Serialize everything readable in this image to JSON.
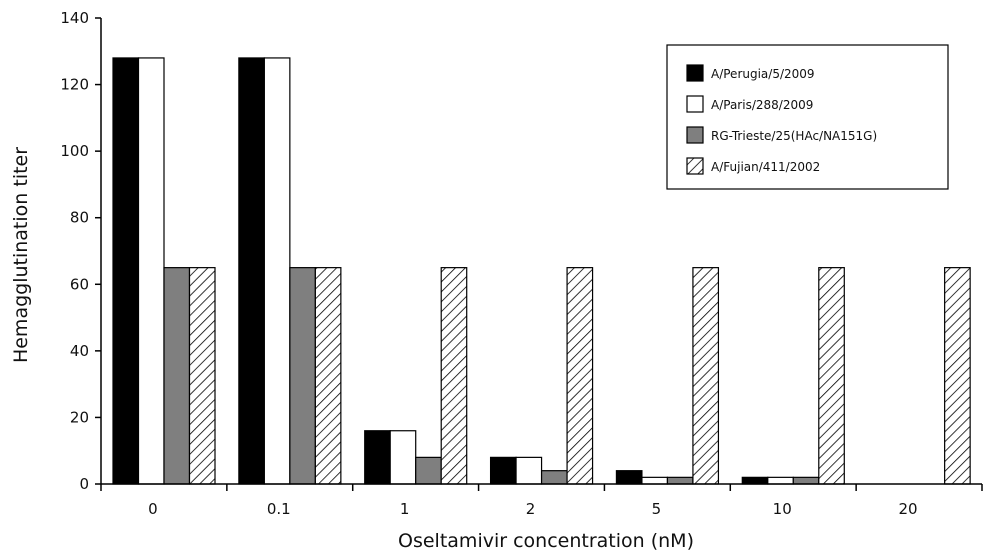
{
  "chart_data": {
    "type": "bar",
    "title": "",
    "xlabel": "Oseltamivir concentration (nM)",
    "ylabel": "Hemagglutination titer",
    "ylim": [
      0,
      140
    ],
    "yticks": [
      0,
      20,
      40,
      60,
      80,
      100,
      120,
      140
    ],
    "categories": [
      "0",
      "0.1",
      "1",
      "2",
      "5",
      "10",
      "20"
    ],
    "legend_position": "top-right",
    "grid": false,
    "series": [
      {
        "name": "A/Perugia/5/2009",
        "fill": "solid-black",
        "color": "#000000",
        "values": [
          128,
          128,
          16,
          8,
          4,
          2,
          0
        ]
      },
      {
        "name": "A/Paris/288/2009",
        "fill": "white",
        "color": "#ffffff",
        "values": [
          128,
          128,
          16,
          8,
          2,
          2,
          0
        ]
      },
      {
        "name": "RG-Trieste/25(HAc/NA151G)",
        "fill": "grey",
        "color": "#7f7f7f",
        "values": [
          65,
          65,
          8,
          4,
          2,
          2,
          0
        ]
      },
      {
        "name": "A/Fujian/411/2002",
        "fill": "diagonal-hatch",
        "color": "#000000",
        "values": [
          65,
          65,
          65,
          65,
          65,
          65,
          65
        ]
      }
    ]
  }
}
